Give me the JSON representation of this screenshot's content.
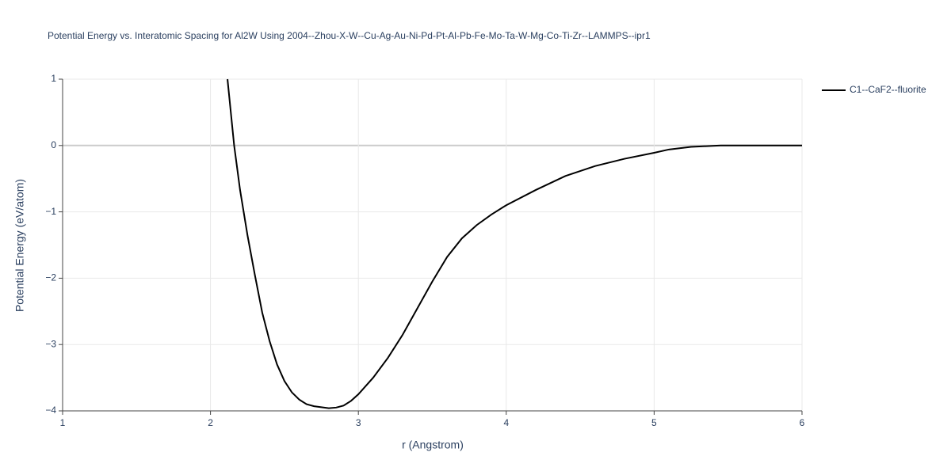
{
  "chart_data": {
    "type": "line",
    "title": "Potential Energy vs. Interatomic Spacing for Al2W Using 2004--Zhou-X-W--Cu-Ag-Au-Ni-Pd-Pt-Al-Pb-Fe-Mo-Ta-W-Mg-Co-Ti-Zr--LAMMPS--ipr1",
    "x_label": "r (Angstrom)",
    "y_label": "Potential Energy (eV/atom)",
    "xlim": [
      1,
      6
    ],
    "ylim": [
      -4,
      1
    ],
    "xticks": [
      1,
      2,
      3,
      4,
      5,
      6
    ],
    "yticks": [
      {
        "value": -4,
        "label": "−4"
      },
      {
        "value": -3,
        "label": "−3"
      },
      {
        "value": -2,
        "label": "−2"
      },
      {
        "value": -1,
        "label": "−1"
      },
      0,
      1
    ],
    "grid": true,
    "legend": "right",
    "x": [
      2.115,
      2.16,
      2.2,
      2.25,
      2.3,
      2.35,
      2.4,
      2.45,
      2.5,
      2.55,
      2.6,
      2.65,
      2.7,
      2.8,
      2.85,
      2.9,
      2.95,
      3.0,
      3.1,
      3.2,
      3.3,
      3.4,
      3.5,
      3.6,
      3.7,
      3.8,
      3.9,
      4.0,
      4.2,
      4.4,
      4.6,
      4.8,
      5.0,
      5.1,
      5.25,
      5.45,
      6.0
    ],
    "series": [
      {
        "name": "C1--CaF2--fluorite",
        "color": "#000000",
        "values": [
          1.0,
          0.0,
          -0.67,
          -1.35,
          -1.95,
          -2.52,
          -2.95,
          -3.3,
          -3.55,
          -3.72,
          -3.83,
          -3.9,
          -3.93,
          -3.96,
          -3.95,
          -3.92,
          -3.85,
          -3.75,
          -3.5,
          -3.2,
          -2.85,
          -2.45,
          -2.05,
          -1.68,
          -1.4,
          -1.2,
          -1.04,
          -0.9,
          -0.67,
          -0.46,
          -0.31,
          -0.2,
          -0.11,
          -0.06,
          -0.02,
          0.0,
          0.0
        ]
      }
    ]
  }
}
